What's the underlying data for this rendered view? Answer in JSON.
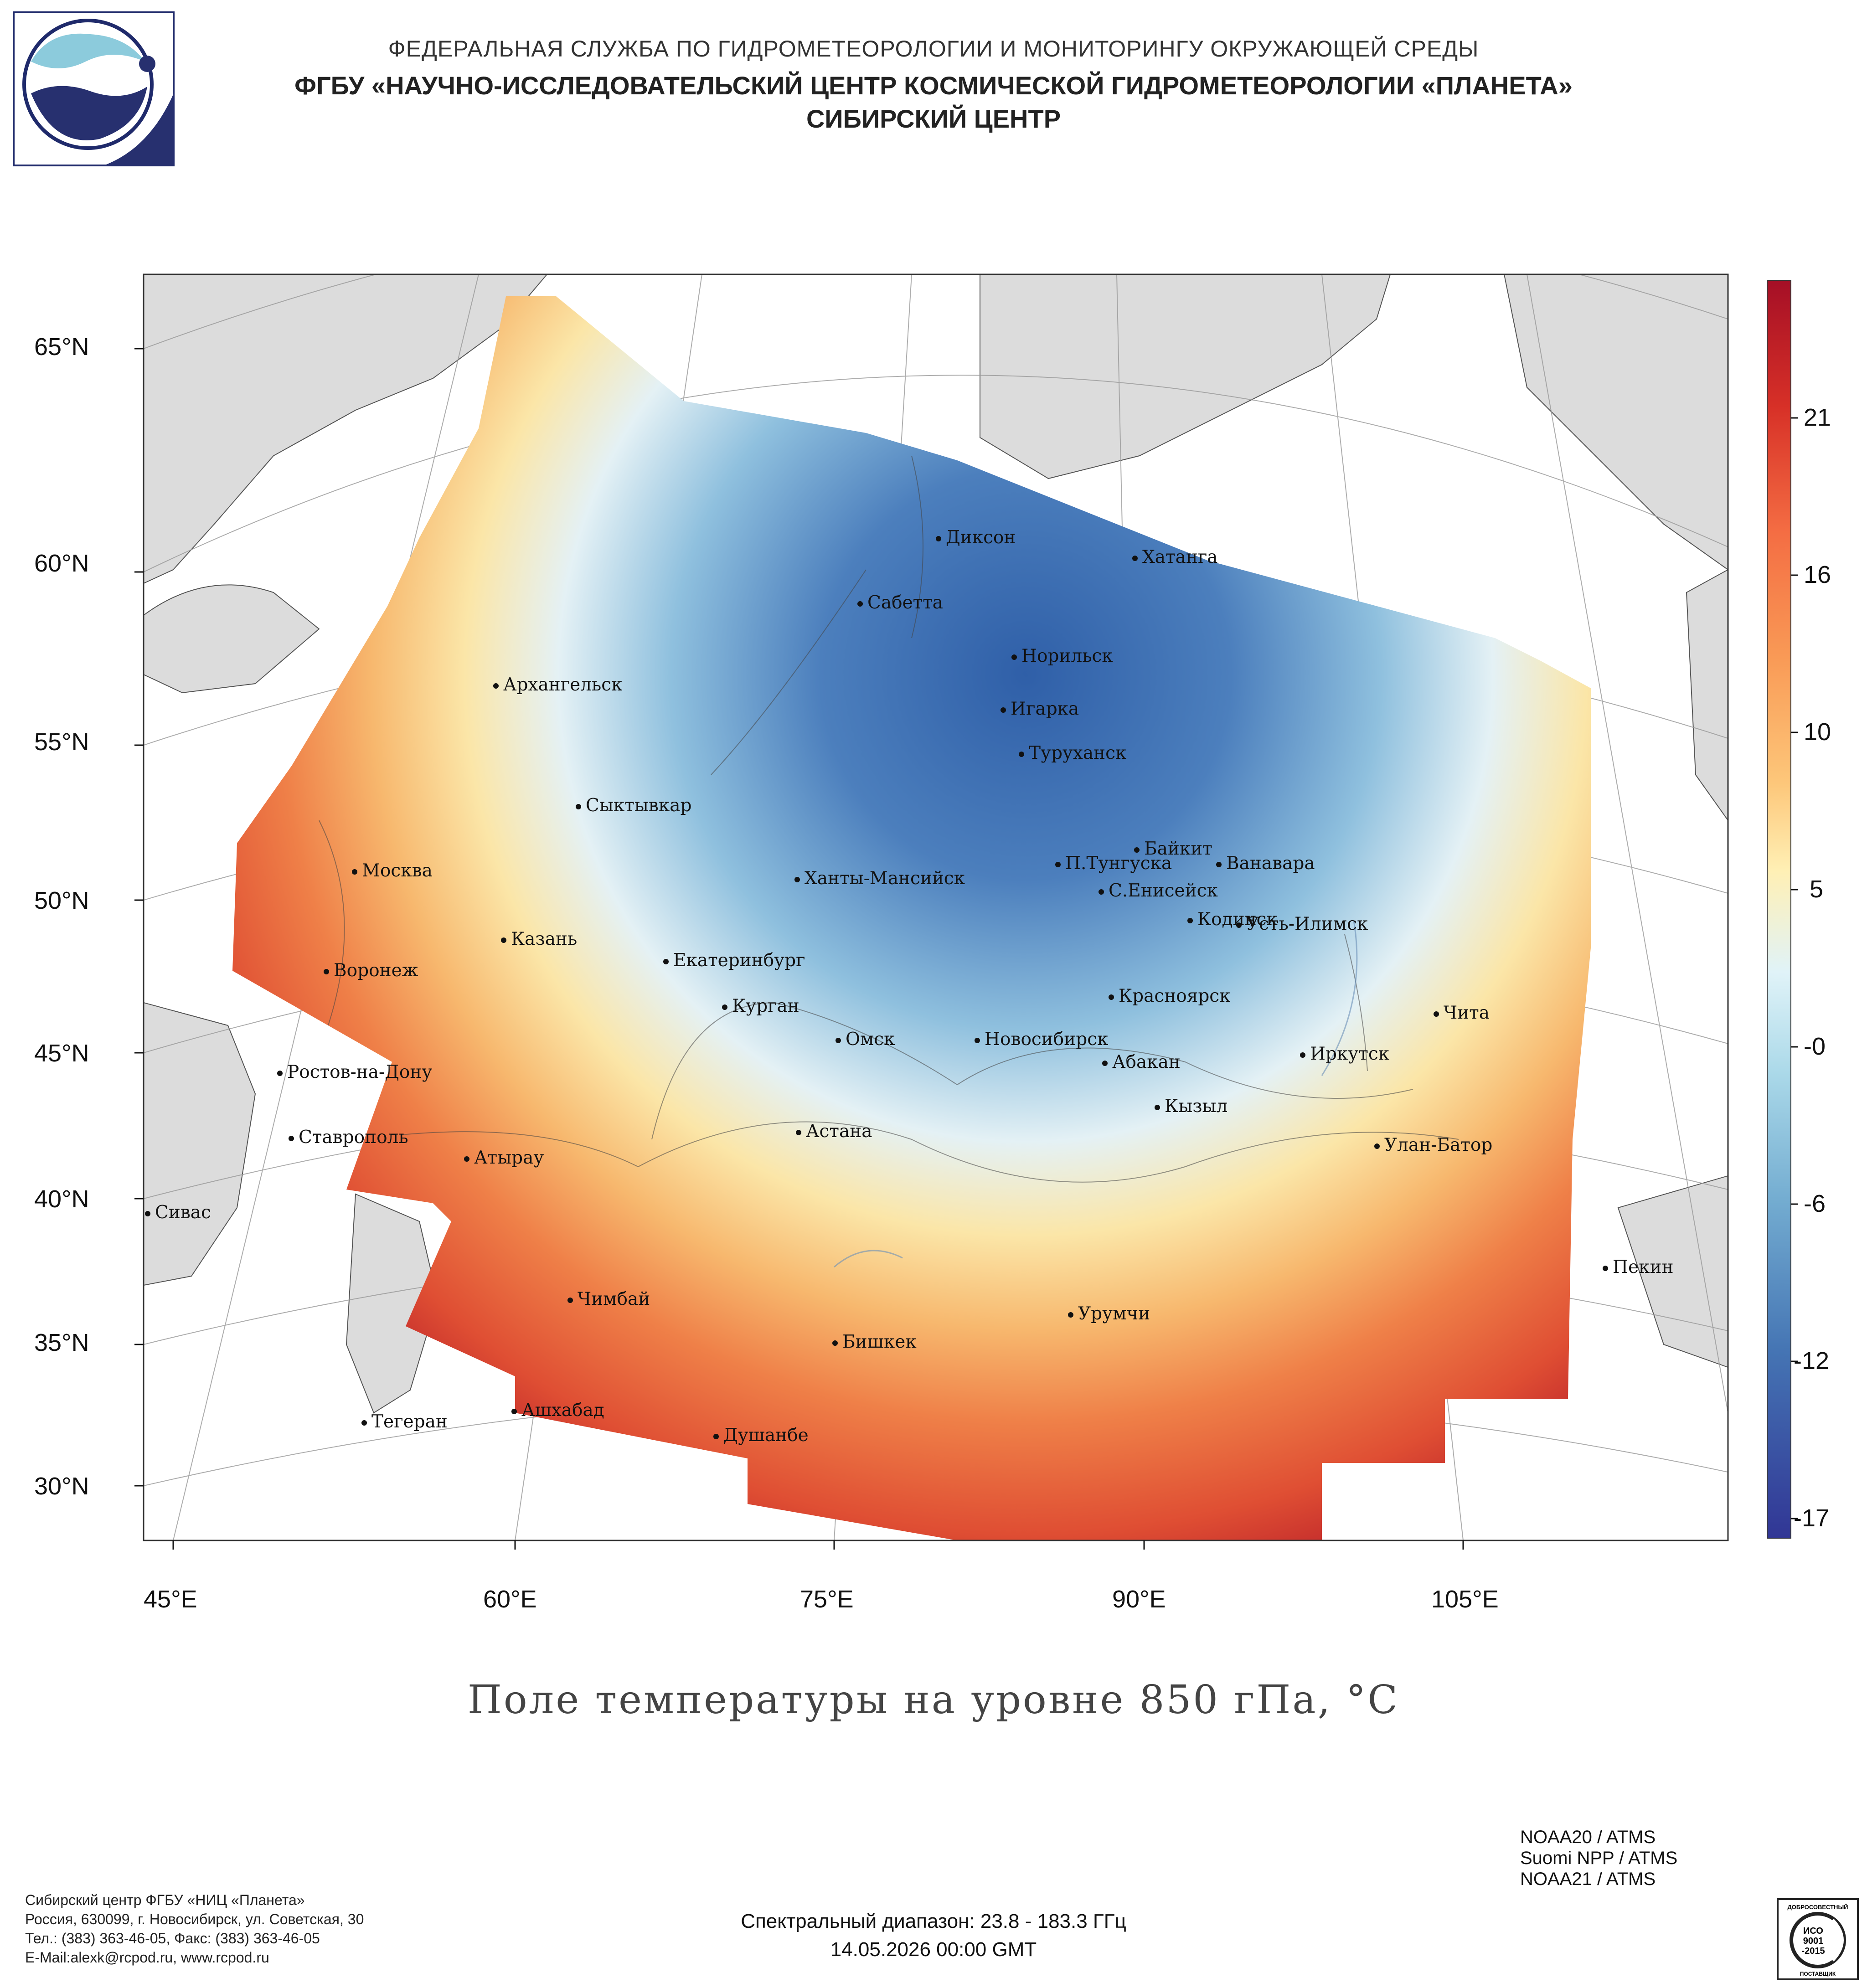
{
  "header": {
    "line1": "ФЕДЕРАЛЬНАЯ СЛУЖБА ПО ГИДРОМЕТЕОРОЛОГИИ И МОНИТОРИНГУ ОКРУЖАЮЩЕЙ СРЕДЫ",
    "line2": "ФГБУ «НАУЧНО-ИССЛЕДОВАТЕЛЬСКИЙ ЦЕНТР КОСМИЧЕСКОЙ ГИДРОМЕТЕОРОЛОГИИ «ПЛАНЕТА»",
    "line3": "СИБИРСКИЙ ЦЕНТР"
  },
  "map": {
    "lat_labels": [
      "65°N",
      "60°N",
      "55°N",
      "50°N",
      "45°N",
      "40°N",
      "35°N",
      "30°N"
    ],
    "lon_labels": [
      "45°E",
      "60°E",
      "75°E",
      "90°E",
      "105°E"
    ],
    "colorbar": {
      "ticks": [
        "21",
        "16",
        "10",
        "5",
        "-0",
        "-6",
        "-12",
        "-17"
      ],
      "colors": [
        "#a50f26",
        "#d73027",
        "#f46d43",
        "#fdae61",
        "#fee090",
        "#ffffbf",
        "#e0f3f8",
        "#abd9e9",
        "#74add1",
        "#4575b4",
        "#313695"
      ]
    },
    "cities": [
      {
        "name": "Диксон"
      },
      {
        "name": "Хатанга"
      },
      {
        "name": "Сабетта"
      },
      {
        "name": "Норильск"
      },
      {
        "name": "Архангельск"
      },
      {
        "name": "Игарка"
      },
      {
        "name": "Туруханск"
      },
      {
        "name": "Сыктывкар"
      },
      {
        "name": "Байкит"
      },
      {
        "name": "П.Тунгуска"
      },
      {
        "name": "Ванавара"
      },
      {
        "name": "Москва"
      },
      {
        "name": "Ханты-Мансийск"
      },
      {
        "name": "С.Енисейск"
      },
      {
        "name": "Кодинск"
      },
      {
        "name": "Усть-Илимск"
      },
      {
        "name": "Казань"
      },
      {
        "name": "Воронеж"
      },
      {
        "name": "Екатеринбург"
      },
      {
        "name": "Красноярск"
      },
      {
        "name": "Курган"
      },
      {
        "name": "Чита"
      },
      {
        "name": "Омск"
      },
      {
        "name": "Новосибирск"
      },
      {
        "name": "Иркутск"
      },
      {
        "name": "Абакан"
      },
      {
        "name": "Ростов-на-Дону"
      },
      {
        "name": "Кызыл"
      },
      {
        "name": "Астана"
      },
      {
        "name": "Ставрополь"
      },
      {
        "name": "Улан-Батор"
      },
      {
        "name": "Атырау"
      },
      {
        "name": "Сивас"
      },
      {
        "name": "Пекин"
      },
      {
        "name": "Чимбай"
      },
      {
        "name": "Урумчи"
      },
      {
        "name": "Бишкек"
      },
      {
        "name": "Ашхабад"
      },
      {
        "name": "Тегеран"
      },
      {
        "name": "Душанбе"
      }
    ]
  },
  "title": "Поле температуры на уровне 850 гПа, °C",
  "footer": {
    "org_lines": [
      "Сибирский центр ФГБУ «НИЦ «Планета»",
      "Россия, 630099, г. Новосибирск, ул. Советская, 30",
      "Тел.: (383) 363-46-05, Факс: (383) 363-46-05",
      "E-Mail:alexk@rcpod.ru, www.rcpod.ru"
    ],
    "spectral": "Спектральный диапазон: 23.8 - 183.3 ГГц",
    "datetime": "14.05.2026 00:00 GMT",
    "satellites": [
      "NOAA20 / ATMS",
      "Suomi NPP / ATMS",
      "NOAA21 / ATMS"
    ],
    "iso": {
      "top": "ДОБРОСОВЕСТНЫЙ",
      "mid1": "ИСО",
      "mid2": "9001",
      "mid3": "-2015",
      "bottom": "ПОСТАВЩИК"
    }
  }
}
